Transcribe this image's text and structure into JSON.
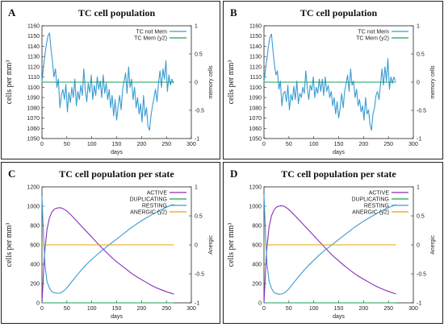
{
  "figure": {
    "panel_letters": [
      "A",
      "B",
      "C",
      "D"
    ]
  },
  "chart_data": [
    {
      "panel": "A",
      "type": "line",
      "title": "TC cell population",
      "xlabel": "days",
      "ylabel": "cells per mm³",
      "y2label": "memory cells",
      "xlim": [
        0,
        300
      ],
      "ylim": [
        1050,
        1160
      ],
      "y2lim": [
        -1,
        1
      ],
      "xticks": [
        0,
        50,
        100,
        150,
        200,
        250,
        300
      ],
      "yticks": [
        1050,
        1060,
        1070,
        1080,
        1090,
        1100,
        1110,
        1120,
        1130,
        1140,
        1150,
        1160
      ],
      "y2ticks": [
        -1,
        -0.5,
        0,
        0.5,
        1
      ],
      "legend_position": "top-right",
      "series": [
        {
          "name": "TC not Mem",
          "color": "#3b9bd3",
          "axis": "y",
          "x": [
            0,
            3,
            6,
            9,
            12,
            15,
            18,
            21,
            24,
            27,
            30,
            33,
            36,
            39,
            42,
            45,
            48,
            51,
            54,
            57,
            60,
            63,
            66,
            69,
            72,
            75,
            78,
            81,
            84,
            87,
            90,
            93,
            96,
            99,
            102,
            105,
            108,
            111,
            114,
            117,
            120,
            123,
            126,
            129,
            132,
            135,
            138,
            141,
            144,
            147,
            150,
            153,
            156,
            159,
            162,
            165,
            168,
            171,
            174,
            177,
            180,
            183,
            186,
            189,
            192,
            195,
            198,
            201,
            204,
            207,
            210,
            213,
            216,
            219,
            222,
            225,
            228,
            231,
            234,
            237,
            240,
            243,
            246,
            249,
            252,
            255,
            258,
            261,
            264
          ],
          "y": [
            1105,
            1120,
            1132,
            1142,
            1150,
            1153,
            1138,
            1125,
            1110,
            1118,
            1100,
            1108,
            1080,
            1092,
            1098,
            1088,
            1103,
            1076,
            1095,
            1085,
            1100,
            1090,
            1108,
            1082,
            1096,
            1088,
            1102,
            1092,
            1118,
            1097,
            1086,
            1104,
            1095,
            1112,
            1088,
            1102,
            1092,
            1110,
            1098,
            1106,
            1090,
            1112,
            1094,
            1104,
            1088,
            1098,
            1080,
            1092,
            1072,
            1088,
            1068,
            1082,
            1092,
            1078,
            1098,
            1106,
            1114,
            1094,
            1120,
            1100,
            1108,
            1088,
            1100,
            1080,
            1090,
            1074,
            1084,
            1066,
            1092,
            1072,
            1080,
            1062,
            1058,
            1072,
            1082,
            1090,
            1098,
            1086,
            1104,
            1116,
            1100,
            1118,
            1108,
            1126,
            1096,
            1112,
            1102,
            1108,
            1104
          ]
        },
        {
          "name": "TC Mem (y2)",
          "color": "#1aa05a",
          "axis": "y2",
          "x": [
            0,
            265
          ],
          "y": [
            0,
            0
          ]
        }
      ]
    },
    {
      "panel": "B",
      "type": "line",
      "title": "TC cell population",
      "xlabel": "days",
      "ylabel": "cells per mm³",
      "y2label": "memory cells",
      "xlim": [
        0,
        300
      ],
      "ylim": [
        1050,
        1160
      ],
      "y2lim": [
        -1,
        1
      ],
      "xticks": [
        0,
        50,
        100,
        150,
        200,
        250,
        300
      ],
      "yticks": [
        1050,
        1060,
        1070,
        1080,
        1090,
        1100,
        1110,
        1120,
        1130,
        1140,
        1150,
        1160
      ],
      "y2ticks": [
        -1,
        -0.5,
        0,
        0.5,
        1
      ],
      "legend_position": "top-right",
      "series": [
        {
          "name": "TC not Mem",
          "color": "#3b9bd3",
          "axis": "y",
          "x": [
            0,
            3,
            6,
            9,
            12,
            15,
            18,
            21,
            24,
            27,
            30,
            33,
            36,
            39,
            42,
            45,
            48,
            51,
            54,
            57,
            60,
            63,
            66,
            69,
            72,
            75,
            78,
            81,
            84,
            87,
            90,
            93,
            96,
            99,
            102,
            105,
            108,
            111,
            114,
            117,
            120,
            123,
            126,
            129,
            132,
            135,
            138,
            141,
            144,
            147,
            150,
            153,
            156,
            159,
            162,
            165,
            168,
            171,
            174,
            177,
            180,
            183,
            186,
            189,
            192,
            195,
            198,
            201,
            204,
            207,
            210,
            213,
            216,
            219,
            222,
            225,
            228,
            231,
            234,
            237,
            240,
            243,
            246,
            249,
            252,
            255,
            258,
            261,
            264
          ],
          "y": [
            1105,
            1118,
            1128,
            1140,
            1149,
            1152,
            1136,
            1122,
            1112,
            1116,
            1098,
            1106,
            1082,
            1094,
            1096,
            1086,
            1102,
            1078,
            1093,
            1087,
            1101,
            1088,
            1106,
            1084,
            1094,
            1090,
            1100,
            1094,
            1116,
            1099,
            1088,
            1102,
            1097,
            1110,
            1090,
            1100,
            1094,
            1108,
            1096,
            1108,
            1092,
            1110,
            1096,
            1102,
            1090,
            1096,
            1082,
            1090,
            1074,
            1086,
            1070,
            1080,
            1094,
            1080,
            1096,
            1104,
            1112,
            1096,
            1118,
            1102,
            1106,
            1090,
            1098,
            1082,
            1088,
            1076,
            1082,
            1068,
            1090,
            1074,
            1078,
            1064,
            1058,
            1074,
            1080,
            1092,
            1096,
            1088,
            1102,
            1118,
            1102,
            1120,
            1106,
            1128,
            1098,
            1110,
            1104,
            1110,
            1106
          ]
        },
        {
          "name": "TC Mem (y2)",
          "color": "#1aa05a",
          "axis": "y2",
          "x": [
            0,
            265
          ],
          "y": [
            0,
            0
          ]
        }
      ]
    },
    {
      "panel": "C",
      "type": "line",
      "title": "TC cell population  per state",
      "xlabel": "days",
      "ylabel": "cells per mm³",
      "y2label": "Anergic",
      "xlim": [
        0,
        300
      ],
      "ylim": [
        0,
        1200
      ],
      "y2lim": [
        -1,
        1
      ],
      "xticks": [
        0,
        50,
        100,
        150,
        200,
        250,
        300
      ],
      "yticks": [
        0,
        200,
        400,
        600,
        800,
        1000,
        1200
      ],
      "y2ticks": [
        -1,
        -0.5,
        0,
        0.5,
        1
      ],
      "legend_position": "top-right",
      "series": [
        {
          "name": "ACTIVE",
          "color": "#8a2fb8",
          "axis": "y",
          "x": [
            0,
            5,
            10,
            15,
            20,
            25,
            30,
            35,
            40,
            45,
            50,
            60,
            70,
            80,
            90,
            100,
            110,
            120,
            130,
            140,
            150,
            160,
            170,
            180,
            190,
            200,
            210,
            220,
            230,
            240,
            250,
            260,
            265
          ],
          "y": [
            0,
            500,
            760,
            880,
            940,
            970,
            980,
            985,
            980,
            965,
            950,
            900,
            845,
            790,
            735,
            680,
            625,
            570,
            520,
            470,
            425,
            385,
            345,
            305,
            270,
            240,
            210,
            180,
            155,
            135,
            115,
            98,
            90
          ]
        },
        {
          "name": "DUPLICATING",
          "color": "#1aa05a",
          "axis": "y",
          "x": [
            0,
            265
          ],
          "y": [
            0,
            0
          ]
        },
        {
          "name": "RESTING",
          "color": "#3b9bd3",
          "axis": "y",
          "x": [
            0,
            3,
            6,
            10,
            15,
            20,
            25,
            30,
            35,
            40,
            45,
            50,
            60,
            70,
            80,
            90,
            100,
            110,
            120,
            130,
            140,
            150,
            160,
            170,
            180,
            190,
            200,
            210,
            220,
            230,
            240,
            250,
            260,
            265
          ],
          "y": [
            1100,
            700,
            400,
            220,
            150,
            115,
            105,
            100,
            100,
            110,
            130,
            155,
            220,
            285,
            345,
            400,
            450,
            495,
            540,
            580,
            620,
            660,
            700,
            740,
            780,
            815,
            850,
            880,
            910,
            940,
            965,
            990,
            1010,
            1020
          ]
        },
        {
          "name": "ANERGIC (y2)",
          "color": "#e8a400",
          "axis": "y2",
          "x": [
            0,
            265
          ],
          "y": [
            0,
            0
          ]
        }
      ]
    },
    {
      "panel": "D",
      "type": "line",
      "title": "TC cell population  per state",
      "xlabel": "days",
      "ylabel": "cells per mm³",
      "y2label": "Anergic",
      "xlim": [
        0,
        300
      ],
      "ylim": [
        0,
        1200
      ],
      "y2lim": [
        -1,
        1
      ],
      "xticks": [
        0,
        50,
        100,
        150,
        200,
        250,
        300
      ],
      "yticks": [
        0,
        200,
        400,
        600,
        800,
        1000,
        1200
      ],
      "y2ticks": [
        -1,
        -0.5,
        0,
        0.5,
        1
      ],
      "legend_position": "top-right",
      "series": [
        {
          "name": "ACTIVE",
          "color": "#8a2fb8",
          "axis": "y",
          "x": [
            0,
            5,
            10,
            15,
            20,
            25,
            30,
            35,
            40,
            45,
            50,
            60,
            70,
            80,
            90,
            100,
            110,
            120,
            130,
            140,
            150,
            160,
            170,
            180,
            190,
            200,
            210,
            220,
            230,
            240,
            250,
            260,
            265
          ],
          "y": [
            0,
            520,
            780,
            900,
            960,
            990,
            1000,
            1005,
            1000,
            985,
            965,
            915,
            860,
            805,
            750,
            695,
            640,
            585,
            530,
            480,
            435,
            390,
            350,
            310,
            275,
            245,
            215,
            185,
            160,
            138,
            118,
            100,
            92
          ]
        },
        {
          "name": "DUPLICATING",
          "color": "#1aa05a",
          "axis": "y",
          "x": [
            0,
            265
          ],
          "y": [
            0,
            0
          ]
        },
        {
          "name": "RESTING",
          "color": "#3b9bd3",
          "axis": "y",
          "x": [
            0,
            3,
            6,
            10,
            15,
            20,
            25,
            30,
            35,
            40,
            45,
            50,
            60,
            70,
            80,
            90,
            100,
            110,
            120,
            130,
            140,
            150,
            160,
            170,
            180,
            190,
            200,
            210,
            220,
            230,
            240,
            250,
            260,
            265
          ],
          "y": [
            1120,
            720,
            410,
            230,
            150,
            110,
            95,
            90,
            92,
            100,
            120,
            145,
            210,
            275,
            335,
            390,
            440,
            490,
            535,
            575,
            615,
            655,
            695,
            735,
            775,
            810,
            845,
            875,
            905,
            935,
            960,
            985,
            1005,
            1015
          ]
        },
        {
          "name": "ANERGIC (y2)",
          "color": "#e8a400",
          "axis": "y2",
          "x": [
            0,
            265
          ],
          "y": [
            0,
            0
          ]
        }
      ]
    }
  ]
}
